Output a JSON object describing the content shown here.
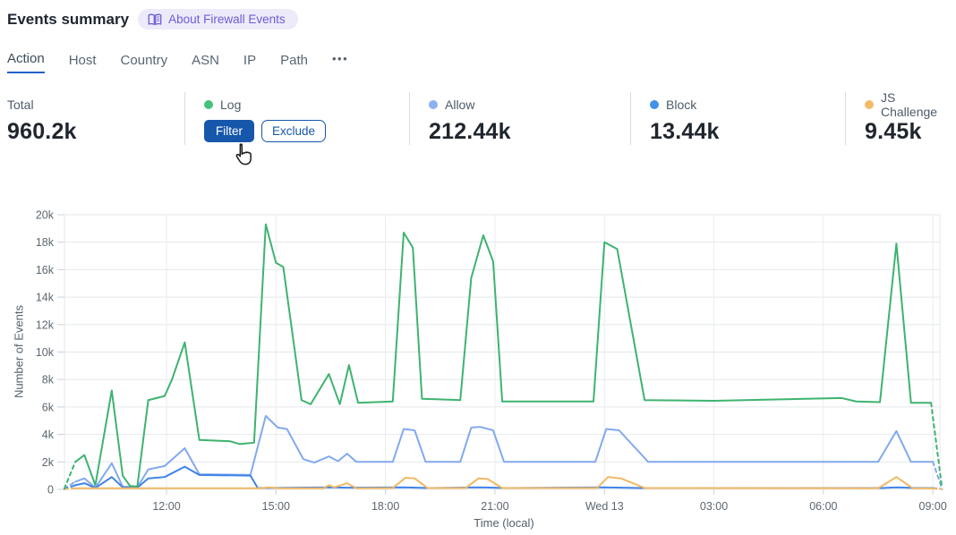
{
  "header": {
    "title": "Events summary",
    "about_label": "About Firewall Events"
  },
  "tabs": {
    "items": [
      {
        "label": "Action",
        "active": true
      },
      {
        "label": "Host",
        "active": false
      },
      {
        "label": "Country",
        "active": false
      },
      {
        "label": "ASN",
        "active": false
      },
      {
        "label": "IP",
        "active": false
      },
      {
        "label": "Path",
        "active": false
      }
    ],
    "more_label": "•••"
  },
  "stats": {
    "columns": [
      {
        "label": "Total",
        "value": "960.2k"
      },
      {
        "label": "Log",
        "dot": "#46c07d",
        "filter_label": "Filter",
        "exclude_label": "Exclude"
      },
      {
        "label": "Allow",
        "value": "212.44k",
        "dot": "#8cb0f2"
      },
      {
        "label": "Block",
        "value": "13.44k",
        "dot": "#4190e9"
      },
      {
        "label": "JS Challenge",
        "value": "9.45k",
        "dot": "#f3bb69"
      }
    ]
  },
  "chart_data": {
    "type": "line",
    "title": "",
    "xlabel": "Time (local)",
    "ylabel": "Number of Events",
    "x_unit": "hours since 09:00 local (Tue); 15 = Wed 13 midnight",
    "y_unit": "events, thousands (k)",
    "ylim": [
      0,
      20
    ],
    "grid": true,
    "y_ticks": [
      {
        "v": 0,
        "label": "0"
      },
      {
        "v": 2,
        "label": "2k"
      },
      {
        "v": 4,
        "label": "4k"
      },
      {
        "v": 6,
        "label": "6k"
      },
      {
        "v": 8,
        "label": "8k"
      },
      {
        "v": 10,
        "label": "10k"
      },
      {
        "v": 12,
        "label": "12k"
      },
      {
        "v": 14,
        "label": "14k"
      },
      {
        "v": 16,
        "label": "16k"
      },
      {
        "v": 18,
        "label": "18k"
      },
      {
        "v": 20,
        "label": "20k"
      }
    ],
    "x_ticks": [
      {
        "t": 3,
        "label": "12:00"
      },
      {
        "t": 6,
        "label": "15:00"
      },
      {
        "t": 9,
        "label": "18:00"
      },
      {
        "t": 12,
        "label": "21:00"
      },
      {
        "t": 15,
        "label": "Wed 13"
      },
      {
        "t": 18,
        "label": "03:00"
      },
      {
        "t": 21,
        "label": "06:00"
      },
      {
        "t": 24,
        "label": "09:00"
      }
    ],
    "series": [
      {
        "name": "Log",
        "color": "#3eb370",
        "dashed_ends": true,
        "points": [
          [
            0.2,
            0.05
          ],
          [
            0.5,
            2.0
          ],
          [
            0.75,
            2.5
          ],
          [
            1.05,
            0.3
          ],
          [
            1.5,
            7.2
          ],
          [
            1.8,
            1.0
          ],
          [
            2.0,
            0.25
          ],
          [
            2.2,
            0.2
          ],
          [
            2.5,
            6.5
          ],
          [
            2.95,
            6.8
          ],
          [
            3.15,
            8.0
          ],
          [
            3.5,
            10.7
          ],
          [
            3.9,
            3.6
          ],
          [
            4.75,
            3.5
          ],
          [
            5.0,
            3.3
          ],
          [
            5.4,
            3.4
          ],
          [
            5.72,
            19.3
          ],
          [
            6.0,
            16.5
          ],
          [
            6.2,
            16.2
          ],
          [
            6.7,
            6.5
          ],
          [
            6.95,
            6.2
          ],
          [
            7.45,
            8.4
          ],
          [
            7.75,
            6.2
          ],
          [
            8.0,
            9.05
          ],
          [
            8.25,
            6.3
          ],
          [
            9.2,
            6.4
          ],
          [
            9.5,
            18.7
          ],
          [
            9.75,
            17.6
          ],
          [
            10.0,
            6.6
          ],
          [
            11.05,
            6.5
          ],
          [
            11.35,
            15.4
          ],
          [
            11.68,
            18.5
          ],
          [
            11.95,
            16.6
          ],
          [
            12.2,
            6.4
          ],
          [
            14.7,
            6.4
          ],
          [
            15.0,
            18.0
          ],
          [
            15.35,
            17.5
          ],
          [
            16.1,
            6.5
          ],
          [
            18.0,
            6.45
          ],
          [
            21.5,
            6.65
          ],
          [
            21.9,
            6.4
          ],
          [
            22.55,
            6.35
          ],
          [
            23.0,
            17.9
          ],
          [
            23.4,
            6.3
          ],
          [
            23.95,
            6.3
          ],
          [
            24.25,
            0.1
          ]
        ]
      },
      {
        "name": "Allow",
        "color": "#82a9ef",
        "dashed_ends": true,
        "points": [
          [
            0.2,
            0.05
          ],
          [
            0.5,
            0.55
          ],
          [
            0.75,
            0.8
          ],
          [
            1.05,
            0.12
          ],
          [
            1.5,
            1.9
          ],
          [
            1.8,
            0.2
          ],
          [
            2.2,
            0.15
          ],
          [
            2.5,
            1.45
          ],
          [
            2.95,
            1.7
          ],
          [
            3.5,
            3.0
          ],
          [
            3.9,
            1.1
          ],
          [
            5.3,
            1.05
          ],
          [
            5.72,
            5.35
          ],
          [
            6.05,
            4.5
          ],
          [
            6.3,
            4.4
          ],
          [
            6.75,
            2.2
          ],
          [
            7.05,
            1.95
          ],
          [
            7.45,
            2.4
          ],
          [
            7.7,
            2.05
          ],
          [
            7.95,
            2.6
          ],
          [
            8.2,
            2.0
          ],
          [
            9.2,
            2.0
          ],
          [
            9.5,
            4.4
          ],
          [
            9.8,
            4.3
          ],
          [
            10.1,
            2.0
          ],
          [
            11.05,
            2.0
          ],
          [
            11.35,
            4.5
          ],
          [
            11.6,
            4.55
          ],
          [
            11.95,
            4.3
          ],
          [
            12.25,
            2.0
          ],
          [
            14.75,
            2.0
          ],
          [
            15.05,
            4.4
          ],
          [
            15.4,
            4.3
          ],
          [
            16.2,
            2.0
          ],
          [
            22.5,
            2.0
          ],
          [
            23.0,
            4.25
          ],
          [
            23.4,
            2.0
          ],
          [
            24.0,
            2.0
          ],
          [
            24.25,
            0.05
          ]
        ]
      },
      {
        "name": "Block",
        "color": "#3f83e8",
        "dashed_ends": true,
        "points": [
          [
            0.2,
            0.02
          ],
          [
            0.5,
            0.3
          ],
          [
            0.75,
            0.45
          ],
          [
            1.05,
            0.1
          ],
          [
            1.5,
            0.9
          ],
          [
            1.8,
            0.15
          ],
          [
            2.2,
            0.12
          ],
          [
            2.5,
            0.8
          ],
          [
            2.95,
            0.9
          ],
          [
            3.5,
            1.65
          ],
          [
            3.9,
            1.05
          ],
          [
            5.3,
            1.0
          ],
          [
            5.5,
            0.1
          ],
          [
            7.5,
            0.15
          ],
          [
            8.0,
            0.12
          ],
          [
            9.5,
            0.15
          ],
          [
            10.2,
            0.1
          ],
          [
            11.6,
            0.15
          ],
          [
            12.3,
            0.1
          ],
          [
            15.0,
            0.15
          ],
          [
            16.0,
            0.1
          ],
          [
            22.6,
            0.1
          ],
          [
            23.0,
            0.15
          ],
          [
            23.5,
            0.1
          ],
          [
            24.0,
            0.1
          ],
          [
            24.25,
            0.02
          ]
        ]
      },
      {
        "name": "JS Challenge",
        "color": "#f0b865",
        "dashed_ends": true,
        "points": [
          [
            0.2,
            0.02
          ],
          [
            0.5,
            0.08
          ],
          [
            3.5,
            0.08
          ],
          [
            5.6,
            0.08
          ],
          [
            5.8,
            0.15
          ],
          [
            6.1,
            0.08
          ],
          [
            7.3,
            0.08
          ],
          [
            7.45,
            0.3
          ],
          [
            7.6,
            0.15
          ],
          [
            7.95,
            0.45
          ],
          [
            8.2,
            0.08
          ],
          [
            9.2,
            0.1
          ],
          [
            9.55,
            0.85
          ],
          [
            9.8,
            0.8
          ],
          [
            10.15,
            0.1
          ],
          [
            11.2,
            0.1
          ],
          [
            11.55,
            0.8
          ],
          [
            11.8,
            0.75
          ],
          [
            12.2,
            0.1
          ],
          [
            14.8,
            0.1
          ],
          [
            15.1,
            0.9
          ],
          [
            15.45,
            0.8
          ],
          [
            16.1,
            0.1
          ],
          [
            22.5,
            0.08
          ],
          [
            23.0,
            0.9
          ],
          [
            23.45,
            0.08
          ],
          [
            24.0,
            0.07
          ],
          [
            24.25,
            0.02
          ]
        ]
      }
    ]
  }
}
